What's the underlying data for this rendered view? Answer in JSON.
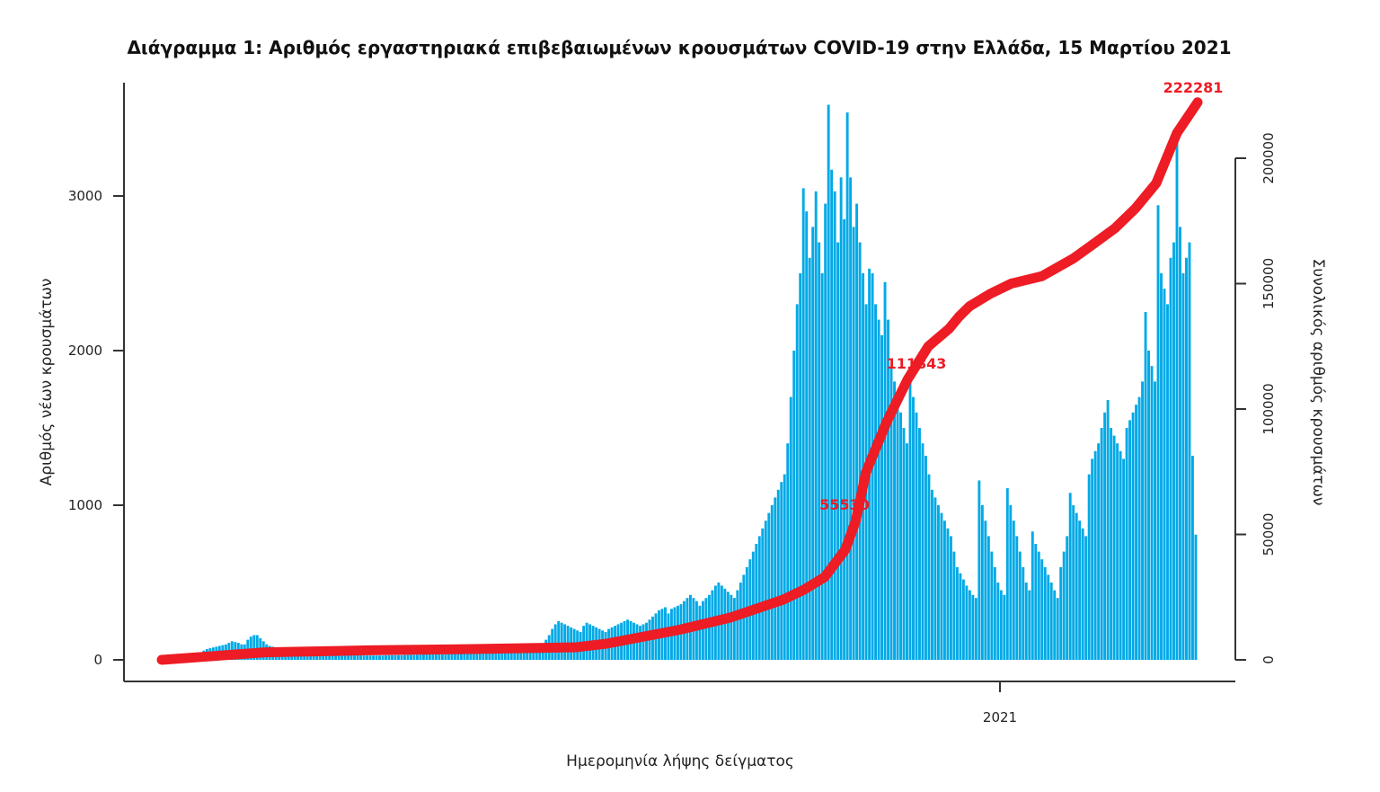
{
  "chart_data": {
    "type": "bar",
    "title": "Διάγραμμα 1: Αριθμός εργαστηριακά επιβεβαιωμένων κρουσμάτων COVID-19 στην Ελλάδα, 15 Μαρτίου 2021",
    "xlabel": "Ημερομηνία λήψης δείγματος",
    "ylabel": "Αριθμός νέων κρουσμάτων",
    "y2label": "Συνολικός αριθμός κρουσμάτων",
    "x_tick_labels": [
      "2021"
    ],
    "ylim": [
      0,
      3700
    ],
    "y_ticks": [
      0,
      1000,
      2000,
      3000
    ],
    "y2lim": [
      0,
      222281
    ],
    "y2_ticks": [
      0,
      50000,
      100000,
      150000,
      200000
    ],
    "annotations": [
      "55530",
      "111843",
      "222281"
    ],
    "grid": false,
    "colors": {
      "bars": "#00a9e6",
      "cumulative": "#ee1c24",
      "axis": "#333333"
    },
    "bar_series": {
      "name": "new cases",
      "values": [
        0,
        0,
        0,
        0,
        0,
        5,
        8,
        10,
        15,
        25,
        30,
        35,
        45,
        60,
        70,
        75,
        80,
        85,
        90,
        95,
        100,
        110,
        120,
        115,
        110,
        100,
        100,
        130,
        150,
        160,
        160,
        140,
        120,
        100,
        90,
        85,
        80,
        75,
        70,
        65,
        60,
        55,
        50,
        50,
        48,
        46,
        44,
        42,
        40,
        40,
        38,
        36,
        35,
        34,
        33,
        32,
        31,
        30,
        30,
        30,
        30,
        30,
        30,
        29,
        28,
        28,
        28,
        28,
        28,
        28,
        28,
        29,
        30,
        30,
        30,
        30,
        30,
        31,
        32,
        32,
        32,
        33,
        34,
        35,
        35,
        35,
        35,
        35,
        35,
        35,
        36,
        37,
        38,
        38,
        38,
        38,
        38,
        39,
        40,
        40,
        40,
        40,
        40,
        41,
        42,
        42,
        43,
        44,
        45,
        46,
        47,
        48,
        50,
        52,
        55,
        58,
        60,
        62,
        65,
        70,
        80,
        100,
        130,
        160,
        200,
        230,
        250,
        240,
        230,
        220,
        210,
        200,
        190,
        180,
        220,
        240,
        230,
        220,
        210,
        200,
        190,
        180,
        200,
        210,
        220,
        230,
        240,
        250,
        260,
        250,
        240,
        230,
        220,
        230,
        240,
        260,
        280,
        300,
        320,
        330,
        340,
        300,
        330,
        340,
        350,
        360,
        380,
        400,
        420,
        400,
        380,
        350,
        380,
        400,
        420,
        450,
        480,
        500,
        480,
        460,
        440,
        420,
        400,
        450,
        500,
        550,
        600,
        650,
        700,
        750,
        800,
        850,
        900,
        950,
        1000,
        1050,
        1100,
        1150,
        1200,
        1400,
        1700,
        2000,
        2300,
        2500,
        3050,
        2900,
        2600,
        2800,
        3030,
        2700,
        2500,
        2950,
        3590,
        3170,
        3030,
        2700,
        3120,
        2850,
        3540,
        3120,
        2800,
        2950,
        2700,
        2500,
        2300,
        2530,
        2500,
        2300,
        2200,
        2100,
        2443,
        2200,
        1900,
        1800,
        1700,
        1600,
        1500,
        1400,
        1830,
        1700,
        1600,
        1500,
        1400,
        1320,
        1200,
        1100,
        1050,
        1000,
        950,
        900,
        850,
        800,
        700,
        600,
        560,
        520,
        480,
        450,
        420,
        400,
        1160,
        1000,
        900,
        800,
        700,
        600,
        500,
        450,
        420,
        1110,
        1000,
        900,
        800,
        700,
        600,
        500,
        450,
        830,
        750,
        700,
        650,
        600,
        550,
        500,
        450,
        400,
        600,
        700,
        800,
        1080,
        1000,
        950,
        900,
        850,
        800,
        1200,
        1300,
        1350,
        1400,
        1500,
        1600,
        1680,
        1500,
        1450,
        1400,
        1350,
        1300,
        1500,
        1550,
        1600,
        1650,
        1700,
        1800,
        2250,
        2000,
        1900,
        1800,
        2940,
        2500,
        2400,
        2300,
        2600,
        2700,
        3400,
        2800,
        2500,
        2600,
        2700,
        1320,
        810
      ]
    },
    "line_series": {
      "name": "cumulative cases",
      "x_fraction": [
        0,
        0.05,
        0.1,
        0.2,
        0.3,
        0.4,
        0.43,
        0.5,
        0.55,
        0.6,
        0.62,
        0.64,
        0.66,
        0.67,
        0.68,
        0.7,
        0.72,
        0.74,
        0.76,
        0.77,
        0.78,
        0.8,
        0.82,
        0.85,
        0.88,
        0.9,
        0.92,
        0.94,
        0.96,
        0.97,
        0.98,
        1.0
      ],
      "values": [
        0,
        1500,
        3000,
        3800,
        4300,
        5000,
        6500,
        12000,
        17000,
        24000,
        28000,
        33000,
        44000,
        55530,
        75000,
        95000,
        111843,
        125000,
        132000,
        137000,
        141000,
        146000,
        150000,
        153000,
        160000,
        166000,
        172000,
        180000,
        190000,
        200000,
        210000,
        222281
      ]
    }
  }
}
